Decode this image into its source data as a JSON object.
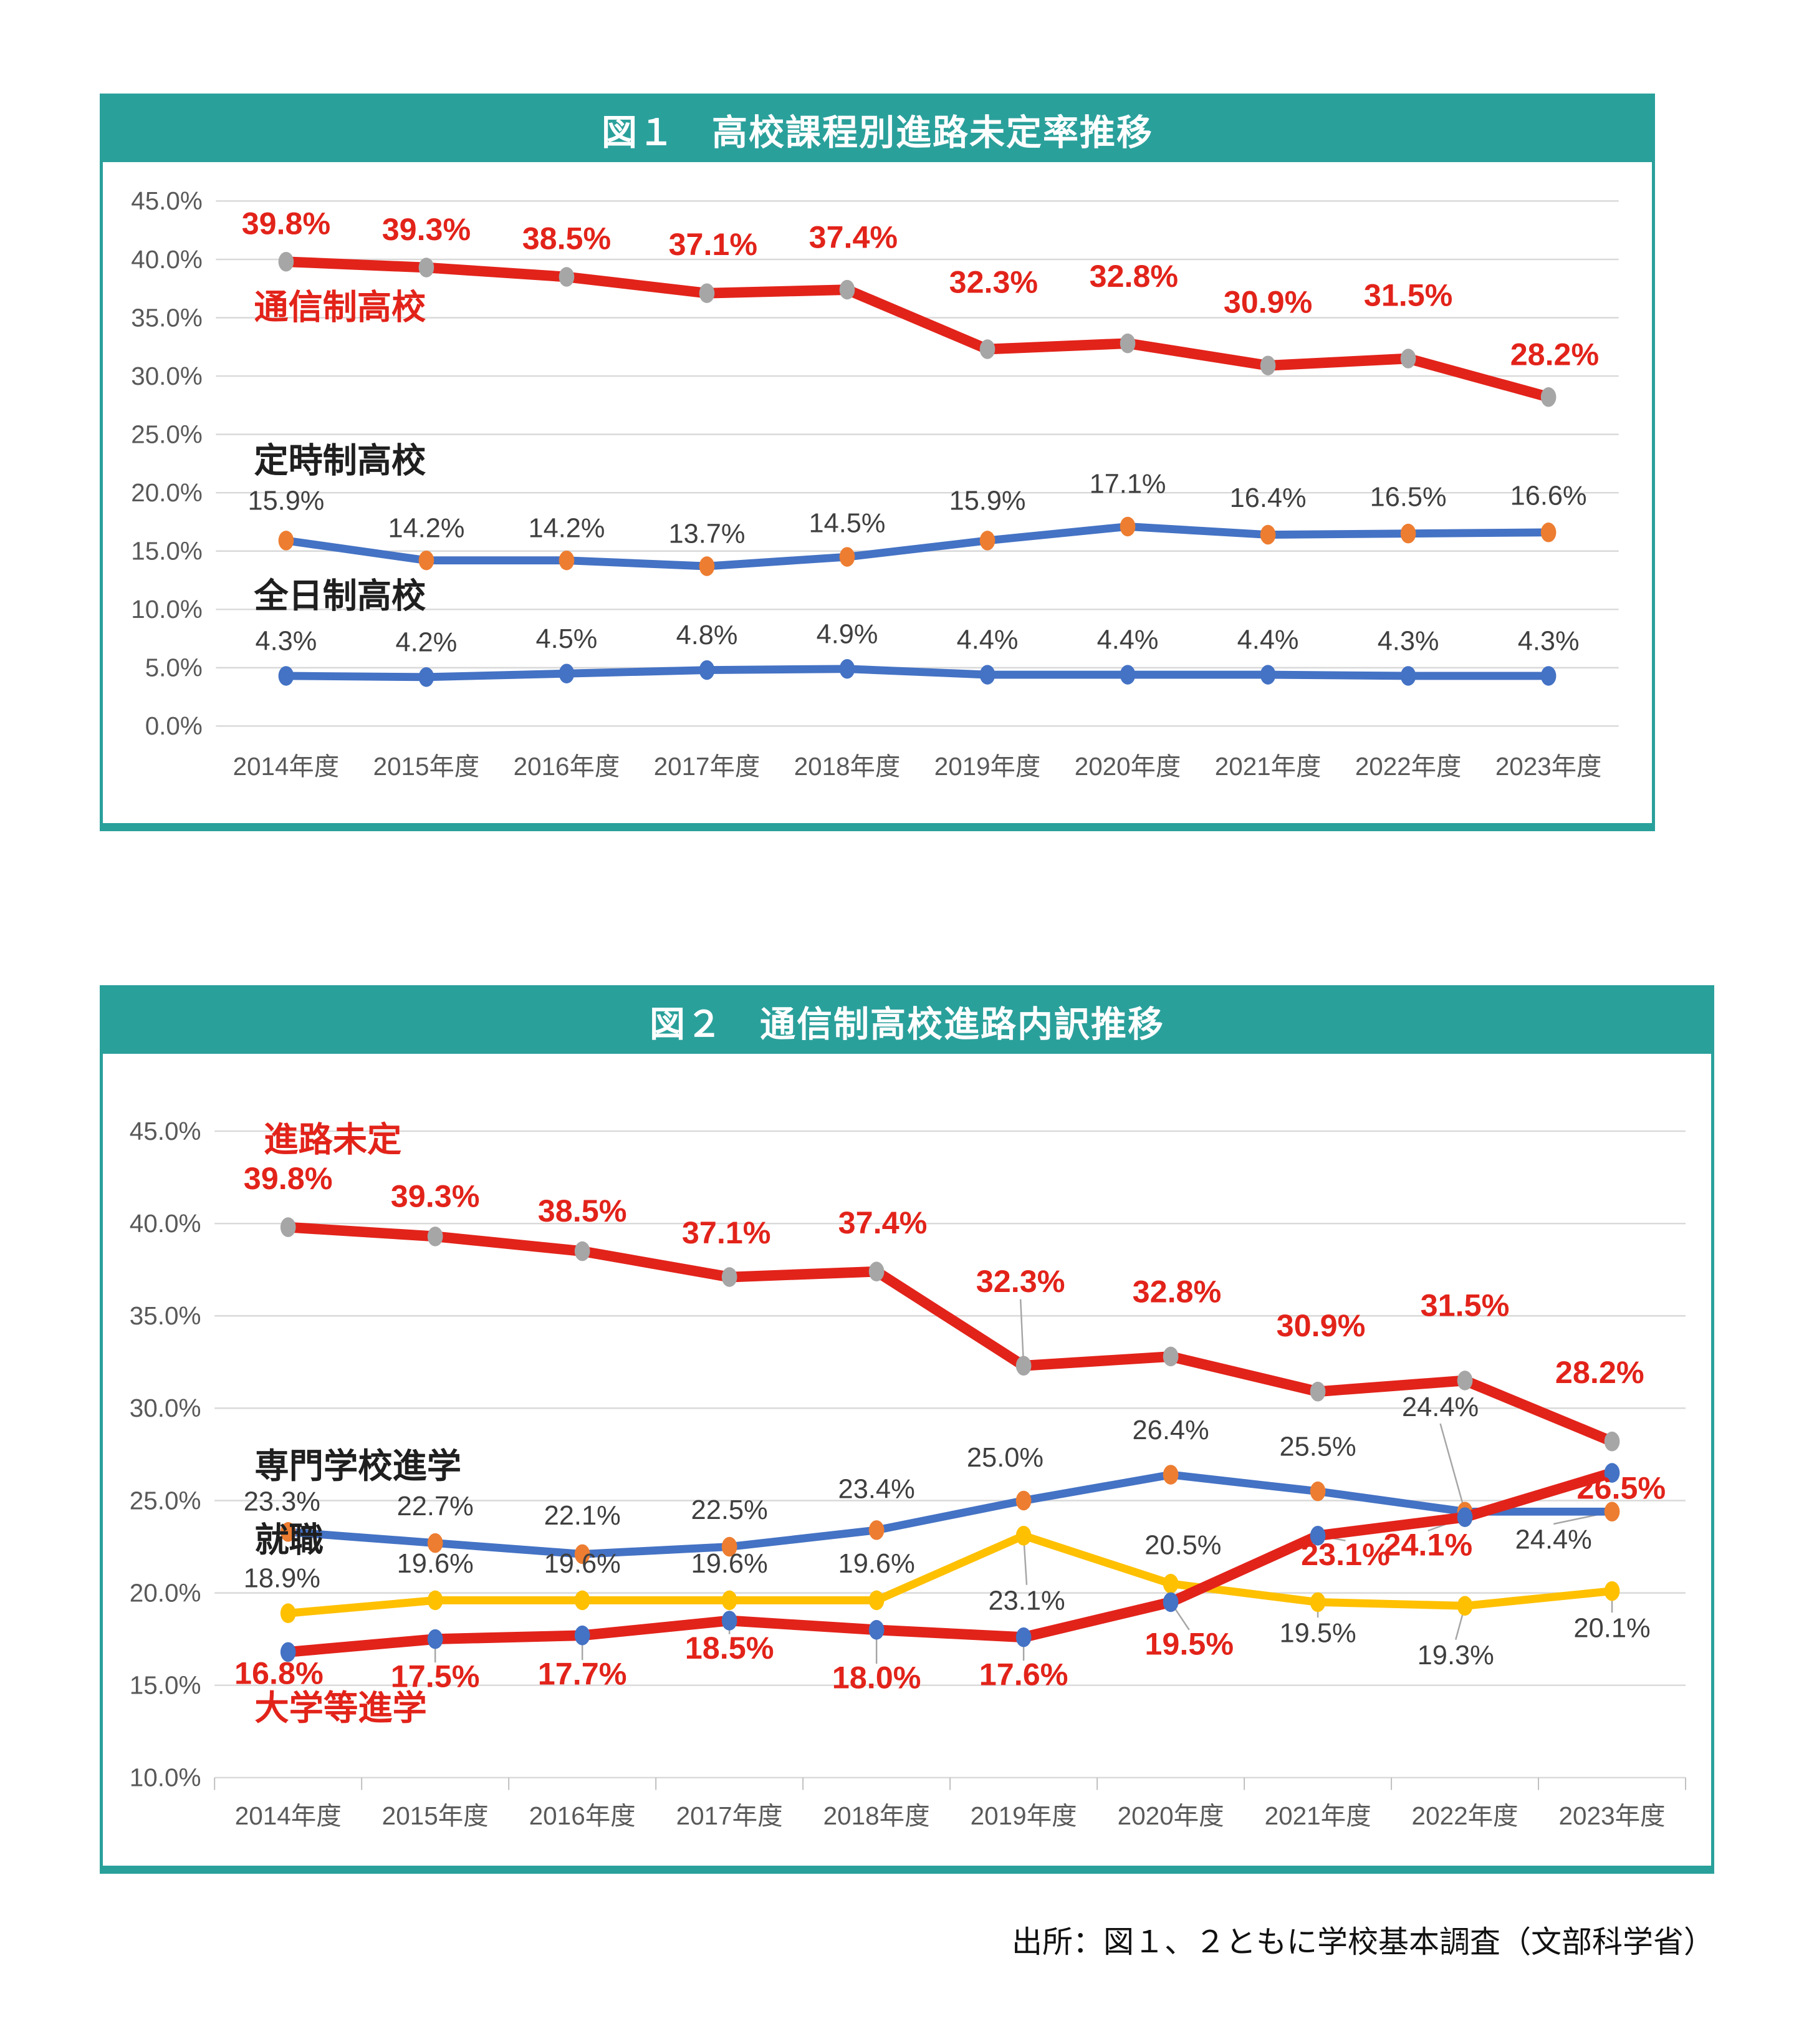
{
  "accent_color": "#2aa09b",
  "source": "出所：図１、２ともに学校基本調査（文部科学省）",
  "chart_data": [
    {
      "type": "line",
      "title": "図１　高校課程別進路未定率推移",
      "categories": [
        "2014年度",
        "2015年度",
        "2016年度",
        "2017年度",
        "2018年度",
        "2019年度",
        "2020年度",
        "2021年度",
        "2022年度",
        "2023年度"
      ],
      "y_ticks": [
        "45.0%",
        "40.0%",
        "35.0%",
        "30.0%",
        "25.0%",
        "20.0%",
        "15.0%",
        "10.0%",
        "5.0%",
        "0.0%"
      ],
      "ylim": [
        0,
        45
      ],
      "grid": true,
      "legend_position": "inline-labels",
      "series": [
        {
          "name": "通信制高校",
          "color": "#e2231a",
          "marker_color": "#a6a6a6",
          "values": [
            39.8,
            39.3,
            38.5,
            37.1,
            37.4,
            32.3,
            32.8,
            30.9,
            31.5,
            28.2
          ],
          "labels": [
            "39.8%",
            "39.3%",
            "38.5%",
            "37.1%",
            "37.4%",
            "32.3%",
            "32.8%",
            "30.9%",
            "31.5%",
            "28.2%"
          ]
        },
        {
          "name": "定時制高校",
          "color": "#4472c4",
          "marker_color": "#ed7d31",
          "values": [
            15.9,
            14.2,
            14.2,
            13.7,
            14.5,
            15.9,
            17.1,
            16.4,
            16.5,
            16.6
          ],
          "labels": [
            "15.9%",
            "14.2%",
            "14.2%",
            "13.7%",
            "14.5%",
            "15.9%",
            "17.1%",
            "16.4%",
            "16.5%",
            "16.6%"
          ]
        },
        {
          "name": "全日制高校",
          "color": "#4472c4",
          "marker_color": "#4472c4",
          "values": [
            4.3,
            4.2,
            4.5,
            4.8,
            4.9,
            4.4,
            4.4,
            4.4,
            4.3,
            4.3
          ],
          "labels": [
            "4.3%",
            "4.2%",
            "4.5%",
            "4.8%",
            "4.9%",
            "4.4%",
            "4.4%",
            "4.4%",
            "4.3%",
            "4.3%"
          ]
        }
      ]
    },
    {
      "type": "line",
      "title": "図２　通信制高校進路内訳推移",
      "categories": [
        "2014年度",
        "2015年度",
        "2016年度",
        "2017年度",
        "2018年度",
        "2019年度",
        "2020年度",
        "2021年度",
        "2022年度",
        "2023年度"
      ],
      "y_ticks": [
        "45.0%",
        "40.0%",
        "35.0%",
        "30.0%",
        "25.0%",
        "20.0%",
        "15.0%",
        "10.0%"
      ],
      "ylim": [
        10,
        45
      ],
      "grid": true,
      "legend_position": "inline-labels",
      "series": [
        {
          "name": "進路未定",
          "color": "#e2231a",
          "marker_color": "#a6a6a6",
          "values": [
            39.8,
            39.3,
            38.5,
            37.1,
            37.4,
            32.3,
            32.8,
            30.9,
            31.5,
            28.2
          ],
          "labels": [
            "39.8%",
            "39.3%",
            "38.5%",
            "37.1%",
            "37.4%",
            "32.3%",
            "32.8%",
            "30.9%",
            "31.5%",
            "28.2%"
          ]
        },
        {
          "name": "専門学校進学",
          "color": "#4472c4",
          "marker_color": "#ed7d31",
          "values": [
            23.3,
            22.7,
            22.1,
            22.5,
            23.4,
            25.0,
            26.4,
            25.5,
            24.4,
            24.4
          ],
          "labels": [
            "23.3%",
            "22.7%",
            "22.1%",
            "22.5%",
            "23.4%",
            "25.0%",
            "26.4%",
            "25.5%",
            "24.4%",
            "24.4%"
          ]
        },
        {
          "name": "就職",
          "color": "#ffc000",
          "marker_color": "#ffc000",
          "values": [
            18.9,
            19.6,
            19.6,
            19.6,
            19.6,
            23.1,
            20.5,
            19.5,
            19.3,
            20.1
          ],
          "labels": [
            "18.9%",
            "19.6%",
            "19.6%",
            "19.6%",
            "19.6%",
            "23.1%",
            "20.5%",
            "19.5%",
            "19.3%",
            "20.1%"
          ]
        },
        {
          "name": "大学等進学",
          "color": "#e2231a",
          "marker_color": "#4472c4",
          "values": [
            16.8,
            17.5,
            17.7,
            18.5,
            18.0,
            17.6,
            19.5,
            23.1,
            24.1,
            26.5
          ],
          "labels": [
            "16.8%",
            "17.5%",
            "17.7%",
            "18.5%",
            "18.0%",
            "17.6%",
            "19.5%",
            "23.1%",
            "24.1%",
            "26.5%"
          ]
        }
      ]
    }
  ]
}
